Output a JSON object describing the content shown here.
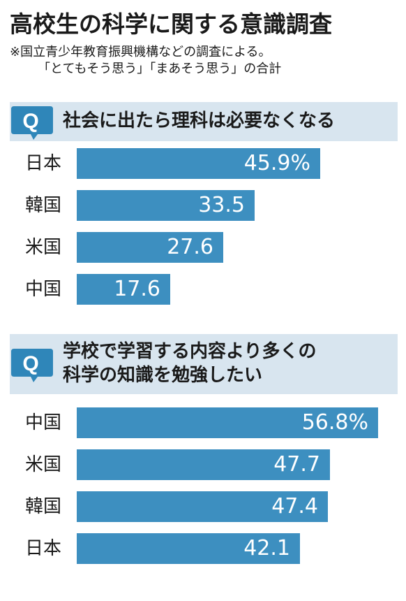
{
  "title": "高校生の科学に関する意識調査",
  "notes": [
    "※国立青少年教育振興機構などの調査による。",
    "「とてもそう思う」「まあそう思う」の合計"
  ],
  "colors": {
    "bar": "#3d8fc0",
    "header_bg": "#d8e5ef",
    "bubble": "#2f86b9"
  },
  "q_icon": "Q",
  "chart_data": [
    {
      "type": "bar",
      "title": "社会に出たら理科は必要なくなる",
      "unit": "%",
      "categories": [
        "日本",
        "韓国",
        "米国",
        "中国"
      ],
      "values": [
        45.9,
        33.5,
        27.6,
        17.6
      ],
      "value_labels": [
        "45.9%",
        "33.5",
        "27.6",
        "17.6"
      ]
    },
    {
      "type": "bar",
      "title_lines": [
        "学校で学習する内容より多くの",
        "科学の知識を勉強したい"
      ],
      "unit": "%",
      "categories": [
        "中国",
        "米国",
        "韓国",
        "日本"
      ],
      "values": [
        56.8,
        47.7,
        47.4,
        42.1
      ],
      "value_labels": [
        "56.8%",
        "47.7",
        "47.4",
        "42.1"
      ]
    }
  ]
}
